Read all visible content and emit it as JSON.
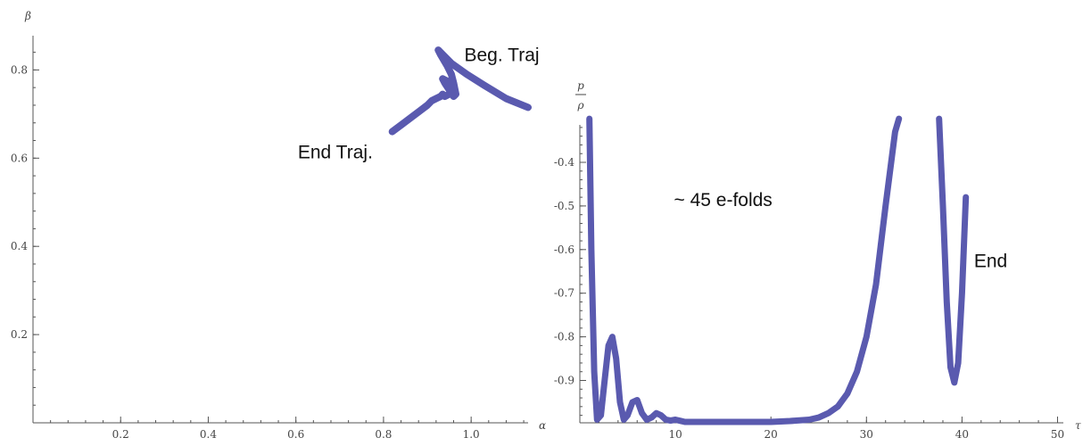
{
  "colors": {
    "curve": "#5a5aaf",
    "axis": "#555555",
    "text": "#111111"
  },
  "chart_data": [
    {
      "type": "line",
      "id": "trajectory",
      "title": "",
      "xlabel": "α",
      "ylabel": "β",
      "xlim": [
        0,
        1.13
      ],
      "ylim": [
        0,
        0.88
      ],
      "x_ticks": [
        0.2,
        0.4,
        0.6,
        0.8,
        1.0
      ],
      "x_tick_labels": [
        "0.2",
        "0.4",
        "0.6",
        "0.8",
        "1.0"
      ],
      "y_ticks": [
        0.2,
        0.4,
        0.6,
        0.8
      ],
      "y_tick_labels": [
        "0.2",
        "0.4",
        "0.6",
        "0.8"
      ],
      "series": [
        {
          "x": [
            1.13,
            1.08,
            1.03,
            0.99,
            0.955,
            0.935,
            0.925,
            0.93,
            0.945,
            0.955,
            0.96,
            0.965,
            0.96,
            0.95,
            0.94,
            0.935,
            0.945,
            0.955,
            0.95,
            0.94,
            0.935,
            0.93,
            0.92,
            0.91,
            0.9,
            0.88,
            0.86,
            0.84,
            0.82
          ],
          "y": [
            0.715,
            0.735,
            0.765,
            0.79,
            0.815,
            0.835,
            0.845,
            0.835,
            0.81,
            0.79,
            0.77,
            0.745,
            0.74,
            0.755,
            0.77,
            0.78,
            0.775,
            0.76,
            0.745,
            0.74,
            0.745,
            0.74,
            0.735,
            0.73,
            0.72,
            0.705,
            0.69,
            0.675,
            0.66
          ]
        }
      ],
      "annotations": [
        {
          "text": "Beg. Traj",
          "x": 1.07,
          "y": 0.82
        },
        {
          "text": "End Traj.",
          "x": 0.69,
          "y": 0.6
        }
      ]
    },
    {
      "type": "line",
      "id": "equation-of-state",
      "title": "",
      "xlabel": "τ",
      "ylabel": "p / ρ",
      "xlim": [
        0,
        51
      ],
      "ylim": [
        -1.0,
        -0.3
      ],
      "x_ticks": [
        10,
        20,
        30,
        40,
        50
      ],
      "x_tick_labels": [
        "10",
        "20",
        "30",
        "40",
        "50"
      ],
      "y_ticks": [
        -0.4,
        -0.5,
        -0.6,
        -0.7,
        -0.8,
        -0.9
      ],
      "y_tick_labels": [
        "-0.4",
        "-0.5",
        "-0.6",
        "-0.7",
        "-0.8",
        "-0.9"
      ],
      "series": [
        {
          "segments": [
            {
              "x": [
                1.0,
                1.2,
                1.5,
                1.8,
                2.2,
                2.6,
                3.0,
                3.4,
                3.8,
                4.2,
                4.6,
                5.0,
                5.5,
                6.0,
                6.5,
                7.0,
                7.5,
                8.0,
                8.5,
                9.0,
                9.5,
                10.0,
                11.0,
                12.0,
                14.0,
                16.0,
                18.0,
                20.0,
                22.0,
                24.0,
                25.0,
                26.0,
                27.0,
                28.0,
                29.0,
                30.0,
                31.0,
                32.0,
                33.0,
                33.4
              ],
              "y": [
                -0.3,
                -0.6,
                -0.88,
                -0.99,
                -0.98,
                -0.9,
                -0.82,
                -0.8,
                -0.85,
                -0.95,
                -0.99,
                -0.98,
                -0.95,
                -0.945,
                -0.975,
                -0.99,
                -0.985,
                -0.975,
                -0.98,
                -0.99,
                -0.992,
                -0.99,
                -0.995,
                -0.995,
                -0.995,
                -0.995,
                -0.995,
                -0.995,
                -0.993,
                -0.99,
                -0.985,
                -0.975,
                -0.96,
                -0.93,
                -0.88,
                -0.8,
                -0.68,
                -0.5,
                -0.33,
                -0.3
              ]
            },
            {
              "x": [
                37.6,
                38.0,
                38.4,
                38.8,
                39.2,
                39.6,
                40.0,
                40.4
              ],
              "y": [
                -0.3,
                -0.5,
                -0.72,
                -0.87,
                -0.905,
                -0.86,
                -0.7,
                -0.48
              ]
            }
          ]
        }
      ],
      "annotations": [
        {
          "text": "~ 45 e-folds",
          "x": 15,
          "y": -0.5
        },
        {
          "text": "End",
          "x": 43,
          "y": -0.64
        }
      ]
    }
  ]
}
